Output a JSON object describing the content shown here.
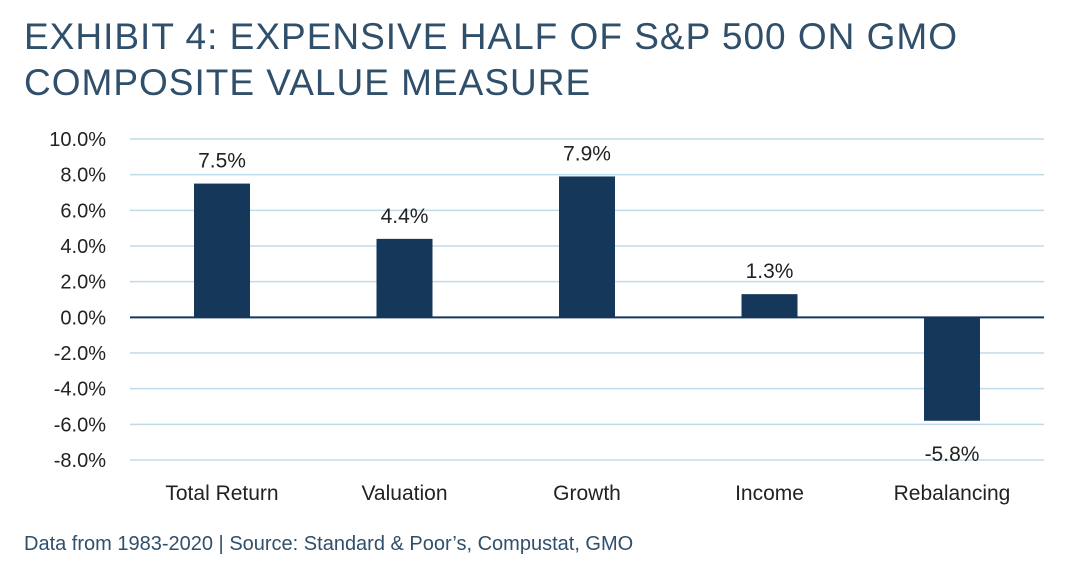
{
  "title_lines": [
    "EXHIBIT 4: EXPENSIVE HALF OF S&P 500 ON GMO",
    "COMPOSITE VALUE MEASURE"
  ],
  "footer": "Data from 1983-2020 | Source: Standard & Poor’s, Compustat, GMO",
  "colors": {
    "bar": "#14375a",
    "title": "#2f4f6b",
    "grid": "#bfdbe9",
    "zero_line": "#14375a",
    "text": "#222222"
  },
  "chart_data": {
    "type": "bar",
    "title": "EXHIBIT 4: EXPENSIVE HALF OF S&P 500 ON GMO COMPOSITE VALUE MEASURE",
    "categories": [
      "Total Return",
      "Valuation",
      "Growth",
      "Income",
      "Rebalancing"
    ],
    "values": [
      7.5,
      4.4,
      7.9,
      1.3,
      -5.8
    ],
    "data_labels": [
      "7.5%",
      "4.4%",
      "7.9%",
      "1.3%",
      "-5.8%"
    ],
    "y_ticks": [
      10,
      8,
      6,
      4,
      2,
      0,
      -2,
      -4,
      -6,
      -8
    ],
    "y_tick_labels": [
      "10.0%",
      "8.0%",
      "6.0%",
      "4.0%",
      "2.0%",
      "0.0%",
      "-2.0%",
      "-4.0%",
      "-6.0%",
      "-8.0%"
    ],
    "ylim": [
      -8,
      10
    ],
    "xlabel": "",
    "ylabel": "",
    "grid": true,
    "legend": "none"
  }
}
